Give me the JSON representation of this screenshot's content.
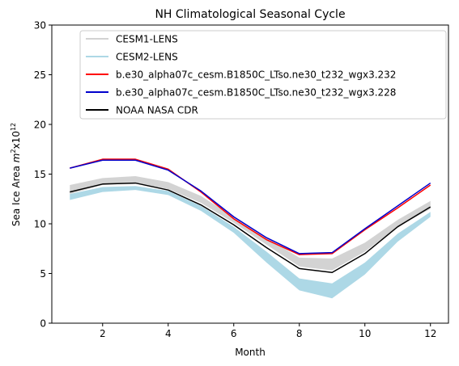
{
  "chart_data": {
    "type": "line",
    "title": "NH Climatological Seasonal Cycle",
    "xlabel": "Month",
    "ylabel_main": "Sea Ice Area ",
    "ylabel_unit": "m",
    "ylabel_exp": "2",
    "ylabel_mid": "x10",
    "ylabel_exp2": "12",
    "xlim": [
      0.45,
      12.55
    ],
    "ylim": [
      0,
      30
    ],
    "x_ticks": [
      2,
      4,
      6,
      8,
      10,
      12
    ],
    "y_ticks": [
      0,
      5,
      10,
      15,
      20,
      25,
      30
    ],
    "x": [
      1,
      2,
      3,
      4,
      5,
      6,
      7,
      8,
      9,
      10,
      11,
      12
    ],
    "bands": [
      {
        "name": "CESM1-LENS",
        "color": "#d3d3d3",
        "low": [
          13.0,
          13.9,
          14.1,
          13.5,
          12.1,
          10.1,
          7.9,
          5.7,
          5.3,
          7.2,
          9.7,
          11.5
        ],
        "high": [
          13.9,
          14.6,
          14.8,
          14.2,
          12.8,
          10.7,
          8.6,
          6.6,
          6.5,
          8.1,
          10.4,
          12.3
        ]
      },
      {
        "name": "CESM2-LENS",
        "color": "#add8e6",
        "low": [
          12.4,
          13.2,
          13.4,
          12.9,
          11.3,
          9.1,
          6.1,
          3.3,
          2.5,
          4.9,
          8.2,
          10.7
        ],
        "high": [
          13.0,
          13.7,
          13.8,
          13.3,
          11.8,
          9.7,
          7.2,
          4.5,
          4.0,
          6.1,
          9.0,
          11.2
        ]
      }
    ],
    "series": [
      {
        "name": "b.e30_alpha07c_cesm.B1850C_LTso.ne30_t232_wgx3.232",
        "color": "#ff0000",
        "values": [
          15.6,
          16.5,
          16.5,
          15.5,
          13.2,
          10.5,
          8.4,
          6.9,
          7.0,
          9.4,
          11.6,
          13.9
        ]
      },
      {
        "name": "b.e30_alpha07c_cesm.B1850C_LTso.ne30_t232_wgx3.228",
        "color": "#0000cc",
        "values": [
          15.6,
          16.4,
          16.4,
          15.4,
          13.3,
          10.7,
          8.6,
          7.0,
          7.1,
          9.5,
          11.8,
          14.1
        ]
      },
      {
        "name": "NOAA NASA CDR",
        "color": "#000000",
        "values": [
          13.2,
          14.0,
          14.1,
          13.4,
          11.9,
          9.9,
          7.6,
          5.5,
          5.1,
          7.0,
          9.7,
          11.7
        ]
      }
    ],
    "legend": {
      "placement": "upper-center",
      "entries": [
        "CESM1-LENS",
        "CESM2-LENS",
        "b.e30_alpha07c_cesm.B1850C_LTso.ne30_t232_wgx3.232",
        "b.e30_alpha07c_cesm.B1850C_LTso.ne30_t232_wgx3.228",
        "NOAA NASA CDR"
      ],
      "colors": [
        "#d3d3d3",
        "#add8e6",
        "#ff0000",
        "#0000cc",
        "#000000"
      ]
    },
    "grid": false
  }
}
